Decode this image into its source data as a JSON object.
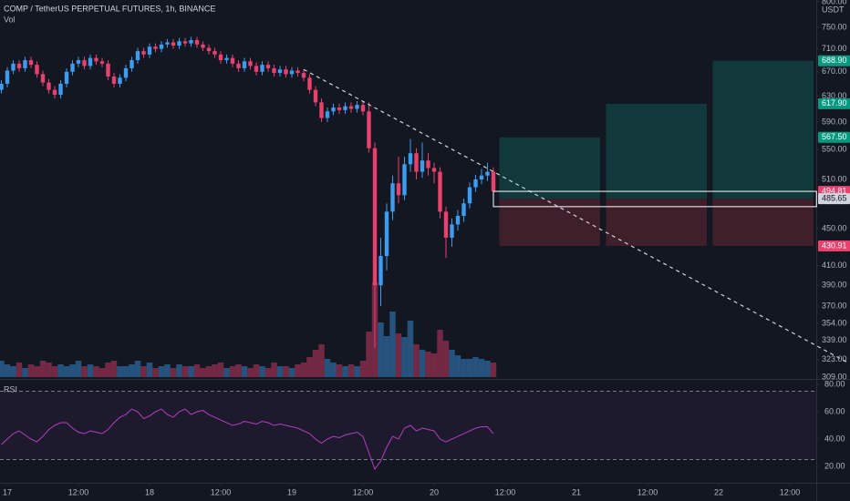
{
  "chart_data": {
    "type": "candlestick",
    "title": "COMP / TetherUS PERPETUAL FUTURES, 1h, BINANCE",
    "volume_label": "Vol",
    "y_unit": "USDT",
    "log_scale": true,
    "up_color": "#3d9bf0",
    "down_color": "#e8416e",
    "x": [
      -1,
      0,
      1,
      2,
      3,
      4,
      5,
      6,
      7,
      8,
      9,
      10,
      11,
      12,
      13,
      14,
      15,
      16,
      17,
      18,
      19,
      20,
      21,
      22,
      23,
      24,
      25,
      26,
      27,
      28,
      29,
      30,
      31,
      32,
      33,
      34,
      35,
      36,
      37,
      38,
      39,
      40,
      41,
      42,
      43,
      44,
      45,
      46,
      47,
      48,
      49,
      50,
      51,
      52,
      53,
      54,
      55,
      56,
      57,
      58,
      59,
      60,
      61,
      62,
      63,
      64,
      65,
      66,
      67,
      68,
      69,
      70,
      71,
      72,
      73,
      74,
      75,
      76,
      77,
      78,
      79,
      80,
      81,
      82
    ],
    "open": [
      640,
      650,
      672,
      684,
      676,
      690,
      682,
      666,
      652,
      640,
      632,
      650,
      670,
      684,
      690,
      680,
      694,
      688,
      684,
      662,
      650,
      660,
      676,
      690,
      706,
      700,
      714,
      710,
      718,
      722,
      716,
      724,
      720,
      726,
      718,
      712,
      706,
      700,
      690,
      694,
      684,
      676,
      688,
      680,
      670,
      682,
      676,
      668,
      674,
      666,
      672,
      668,
      660,
      640,
      620,
      596,
      606,
      612,
      608,
      614,
      610,
      616,
      606,
      552,
      390,
      420,
      470,
      505,
      490,
      530,
      545,
      520,
      535,
      525,
      520,
      470,
      440,
      455,
      465,
      480,
      500,
      510,
      515,
      520
    ],
    "high": [
      656,
      678,
      690,
      690,
      696,
      696,
      688,
      672,
      658,
      646,
      656,
      676,
      690,
      696,
      696,
      700,
      700,
      694,
      690,
      668,
      666,
      682,
      696,
      712,
      712,
      720,
      720,
      724,
      728,
      728,
      730,
      730,
      732,
      732,
      724,
      718,
      712,
      706,
      700,
      700,
      690,
      694,
      694,
      686,
      688,
      688,
      682,
      680,
      680,
      678,
      678,
      674,
      666,
      646,
      626,
      612,
      618,
      618,
      620,
      620,
      622,
      622,
      620,
      560,
      440,
      480,
      515,
      540,
      540,
      565,
      552,
      560,
      545,
      532,
      526,
      476,
      462,
      472,
      486,
      506,
      516,
      524,
      532,
      526
    ],
    "low": [
      634,
      644,
      666,
      670,
      670,
      676,
      660,
      646,
      634,
      626,
      626,
      644,
      664,
      678,
      674,
      674,
      682,
      678,
      656,
      644,
      644,
      654,
      670,
      684,
      694,
      694,
      704,
      704,
      712,
      710,
      710,
      714,
      714,
      712,
      706,
      700,
      694,
      684,
      684,
      678,
      670,
      670,
      674,
      664,
      664,
      670,
      662,
      662,
      660,
      660,
      662,
      654,
      634,
      614,
      590,
      590,
      600,
      602,
      602,
      604,
      604,
      600,
      546,
      333,
      370,
      405,
      460,
      480,
      484,
      520,
      510,
      512,
      515,
      505,
      462,
      418,
      430,
      448,
      458,
      474,
      494,
      504,
      508,
      488
    ],
    "close": [
      650,
      672,
      684,
      676,
      690,
      682,
      666,
      652,
      640,
      632,
      650,
      670,
      684,
      690,
      680,
      694,
      688,
      684,
      662,
      650,
      660,
      676,
      690,
      706,
      700,
      714,
      710,
      718,
      722,
      716,
      724,
      720,
      726,
      718,
      712,
      706,
      700,
      690,
      694,
      684,
      676,
      688,
      680,
      670,
      682,
      676,
      668,
      674,
      666,
      672,
      668,
      660,
      640,
      620,
      596,
      606,
      612,
      608,
      614,
      610,
      616,
      606,
      552,
      390,
      420,
      470,
      505,
      490,
      530,
      545,
      520,
      535,
      525,
      520,
      470,
      440,
      455,
      465,
      480,
      500,
      510,
      515,
      520,
      494.81
    ],
    "volume": [
      18,
      14,
      12,
      16,
      10,
      14,
      12,
      18,
      16,
      12,
      14,
      12,
      14,
      18,
      12,
      14,
      12,
      10,
      16,
      18,
      12,
      12,
      14,
      18,
      12,
      16,
      10,
      12,
      14,
      10,
      14,
      12,
      12,
      14,
      10,
      12,
      14,
      16,
      10,
      12,
      14,
      12,
      10,
      14,
      12,
      10,
      16,
      12,
      12,
      10,
      14,
      16,
      22,
      30,
      36,
      20,
      16,
      14,
      12,
      14,
      12,
      18,
      50,
      104,
      60,
      45,
      72,
      48,
      44,
      62,
      36,
      30,
      28,
      26,
      52,
      40,
      30,
      24,
      20,
      20,
      22,
      20,
      18,
      16
    ],
    "ylim": [
      309,
      800
    ],
    "yticks": [
      {
        "value": 800,
        "label": "800.00"
      },
      {
        "value": 750,
        "label": "750.00"
      },
      {
        "value": 710,
        "label": "710.00"
      },
      {
        "value": 670,
        "label": "670.00"
      },
      {
        "value": 630,
        "label": "630.00"
      },
      {
        "value": 590,
        "label": "590.00"
      },
      {
        "value": 550,
        "label": "550.00"
      },
      {
        "value": 510,
        "label": "510.00"
      },
      {
        "value": 450,
        "label": "450.00"
      },
      {
        "value": 410,
        "label": "410.00"
      },
      {
        "value": 390,
        "label": "390.00"
      },
      {
        "value": 370,
        "label": "370.00"
      },
      {
        "value": 354,
        "label": "354.00"
      },
      {
        "value": 339,
        "label": "339.00"
      },
      {
        "value": 323,
        "label": "323.00"
      },
      {
        "value": 309,
        "label": "309.00"
      }
    ],
    "xlim": [
      -1.23,
      136.46
    ],
    "xticks": [
      {
        "value": 0,
        "label": "17"
      },
      {
        "value": 12,
        "label": "12:00"
      },
      {
        "value": 24,
        "label": "18"
      },
      {
        "value": 36,
        "label": "12:00"
      },
      {
        "value": 48,
        "label": "19"
      },
      {
        "value": 60,
        "label": "12:00"
      },
      {
        "value": 72,
        "label": "20"
      },
      {
        "value": 84,
        "label": "12:00"
      },
      {
        "value": 96,
        "label": "21"
      },
      {
        "value": 108,
        "label": "12:00"
      },
      {
        "value": 120,
        "label": "22"
      },
      {
        "value": 132,
        "label": "12:00"
      }
    ],
    "trendline": {
      "x": [
        50,
        142
      ],
      "y": [
        674,
        320
      ],
      "color": "#d1d4dc"
    },
    "positions": [
      {
        "start": 83,
        "end": 100,
        "entry": 485.65,
        "stop": 430.91,
        "target": 567.5
      },
      {
        "start": 101,
        "end": 118,
        "entry": 485.65,
        "stop": 430.91,
        "target": 617.9
      },
      {
        "start": 119,
        "end": 136,
        "entry": 485.65,
        "stop": 430.91,
        "target": 688.9
      }
    ],
    "profit_color": "#11383a",
    "loss_color": "#3e1f2a",
    "range_box": {
      "start": 82,
      "end": 136.5,
      "top": 494.81,
      "bottom": 476,
      "color": "#ffffff"
    },
    "price_labels": [
      {
        "value": 688.9,
        "label": "688.90",
        "color": "#089981"
      },
      {
        "value": 617.9,
        "label": "617.90",
        "color": "#089981"
      },
      {
        "value": 567.5,
        "label": "567.50",
        "color": "#089981"
      },
      {
        "value": 494.81,
        "label": "494.81",
        "color": "#e8416e"
      },
      {
        "value": 485.65,
        "label": "485.65",
        "color": "#d1d4dc"
      },
      {
        "value": 430.91,
        "label": "430.91",
        "color": "#e8416e"
      }
    ],
    "rsi": {
      "title": "RSI",
      "color": "#b43fc1",
      "values": [
        36,
        40,
        44,
        46,
        43,
        40,
        38,
        42,
        47,
        50,
        52,
        52,
        48,
        45,
        44,
        46,
        45,
        44,
        47,
        52,
        56,
        58,
        62,
        60,
        55,
        57,
        60,
        62,
        58,
        56,
        60,
        62,
        58,
        60,
        61,
        58,
        56,
        54,
        52,
        50,
        51,
        53,
        52,
        51,
        53,
        52,
        50,
        51,
        50,
        49,
        48,
        46,
        44,
        40,
        37,
        40,
        42,
        41,
        43,
        44,
        45,
        42,
        30,
        18,
        24,
        34,
        42,
        40,
        48,
        50,
        46,
        48,
        47,
        46,
        40,
        38,
        40,
        42,
        44,
        46,
        48,
        49,
        49,
        44
      ],
      "ylim": [
        8,
        82.7
      ],
      "yticks": [
        {
          "value": 80,
          "label": "80.00"
        },
        {
          "value": 60,
          "label": "60.00"
        },
        {
          "value": 40,
          "label": "40.00"
        },
        {
          "value": 20,
          "label": "20.00"
        }
      ],
      "bands": [
        75,
        25
      ]
    }
  }
}
